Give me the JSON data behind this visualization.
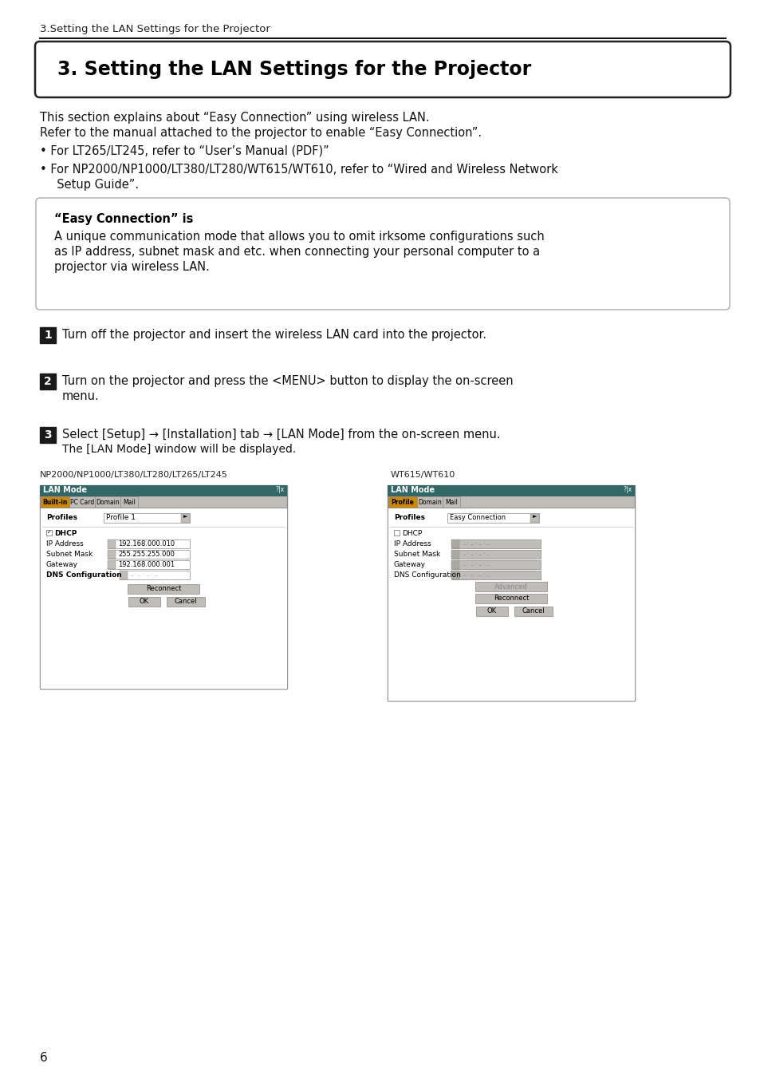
{
  "bg_color": "#ffffff",
  "header_text": "3.Setting the LAN Settings for the Projector",
  "title_box_text": "3. Setting the LAN Settings for the Projector",
  "para1": "This section explains about “Easy Connection” using wireless LAN.",
  "para2": "Refer to the manual attached to the projector to enable “Easy Connection”.",
  "bullet1": "• For LT265/LT245, refer to “User’s Manual (PDF)”",
  "bullet2a": "• For NP2000/NP1000/LT380/LT280/WT615/WT610, refer to “Wired and Wireless Network",
  "bullet2b": "  Setup Guide”.",
  "easy_conn_title": "“Easy Connection” is",
  "easy_conn_body1": "A unique communication mode that allows you to omit irksome configurations such",
  "easy_conn_body2": "as IP address, subnet mask and etc. when connecting your personal computer to a",
  "easy_conn_body3": "projector via wireless LAN.",
  "step1": "Turn off the projector and insert the wireless LAN card into the projector.",
  "step2a": "Turn on the projector and press the <MENU> button to display the on-screen",
  "step2b": "menu.",
  "step3a": "Select [Setup] → [Installation] tab → [LAN Mode] from the on-screen menu.",
  "step3b": "The [LAN Mode] window will be displayed.",
  "img_label1": "NP2000/NP1000/LT380/LT280/LT265/LT245",
  "img_label2": "WT615/WT610",
  "page_number": "6",
  "teal_color": "#336666",
  "orange_color": "#cc8800",
  "gray_bg": "#c0bdb8",
  "win_border": "#888888"
}
